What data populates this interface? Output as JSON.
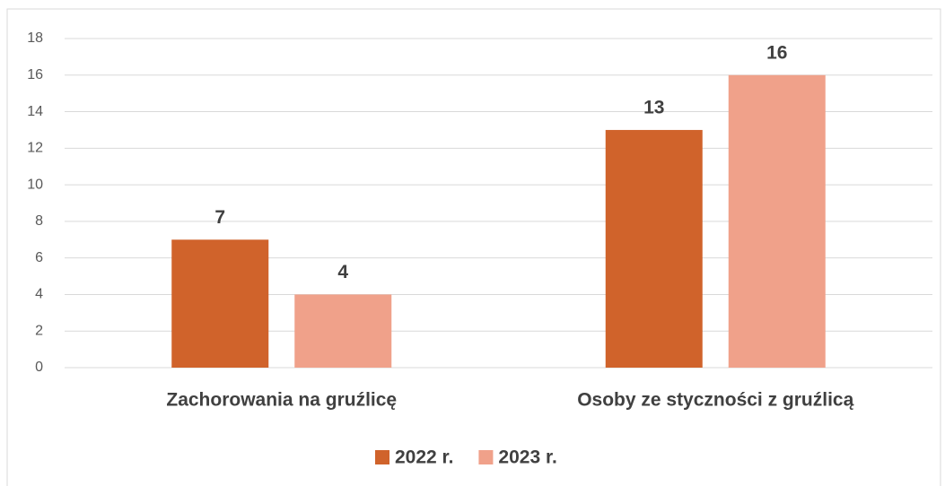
{
  "chart_data": {
    "type": "bar",
    "categories": [
      "Zachorowania na gruźlicę",
      "Osoby ze styczności z gruźlicą"
    ],
    "series": [
      {
        "name": "2022 r.",
        "color": "#d0632b",
        "values": [
          7,
          13
        ]
      },
      {
        "name": "2023 r.",
        "color": "#f0a18a",
        "values": [
          4,
          16
        ]
      }
    ],
    "ylim": [
      0,
      18
    ],
    "yticks": [
      0,
      2,
      4,
      6,
      8,
      10,
      12,
      14,
      16,
      18
    ],
    "grid": true,
    "legend": "bottom"
  }
}
